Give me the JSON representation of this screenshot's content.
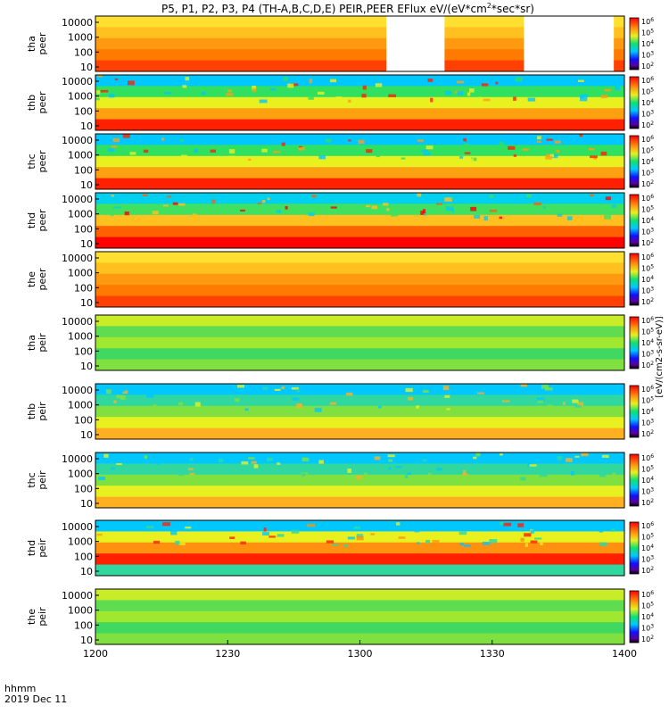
{
  "figure": {
    "title": "P5, P1, P2, P3, P4 (TH-A,B,C,D,E) PEIR,PEER EFlux eV/(eV*cm",
    "title_sup": "2",
    "title_tail": "*sec*sr)",
    "corner_label_1": "hhmm",
    "corner_label_2": "2019 Dec 11"
  },
  "chart_data": {
    "type": "heatmap",
    "x_ticks": [
      "1200",
      "1230",
      "1300",
      "1330",
      "1400"
    ],
    "x_range": [
      "12:00",
      "14:00"
    ],
    "y_scale": "log",
    "colorbar_ticks": [
      "10",
      "10",
      "10",
      "10",
      "10"
    ],
    "colorbar_exps": [
      "2",
      "3",
      "4",
      "5",
      "6"
    ],
    "colorbar_label": "[eV/(cm2-s-sr-eV)]",
    "panels": [
      {
        "label1": "tha",
        "label2": "peer",
        "y_ticks": [
          "10000",
          "1000",
          "100",
          "10"
        ],
        "base": "orange",
        "gaps": [
          [
            0.55,
            0.66
          ],
          [
            0.81,
            0.98
          ]
        ]
      },
      {
        "label1": "thb",
        "label2": "peer",
        "y_ticks": [
          "10000",
          "1000",
          "100",
          "10"
        ],
        "base": "mixed",
        "noise": true
      },
      {
        "label1": "thc",
        "label2": "peer",
        "y_ticks": [
          "10000",
          "1000",
          "100",
          "10"
        ],
        "base": "mixed",
        "noise": true
      },
      {
        "label1": "thd",
        "label2": "peer",
        "y_ticks": [
          "10000",
          "1000",
          "100",
          "10"
        ],
        "base": "red-low",
        "noise": true
      },
      {
        "label1": "the",
        "label2": "peer",
        "y_ticks": [
          "10000",
          "1000",
          "100",
          "10"
        ],
        "base": "orange"
      },
      {
        "label1": "tha",
        "label2": "peir",
        "y_ticks": [
          "10000",
          "1000",
          "100",
          "10"
        ],
        "base": "green"
      },
      {
        "label1": "thb",
        "label2": "peir",
        "y_ticks": [
          "10000",
          "1000",
          "100",
          "10"
        ],
        "base": "mixed-ion",
        "noise": true
      },
      {
        "label1": "thc",
        "label2": "peir",
        "y_ticks": [
          "10000",
          "1000",
          "100",
          "10"
        ],
        "base": "mixed-ion",
        "noise": true
      },
      {
        "label1": "thd",
        "label2": "peir",
        "y_ticks": [
          "10000",
          "1000",
          "100",
          "10"
        ],
        "base": "ion-band",
        "noise": true
      },
      {
        "label1": "the",
        "label2": "peir",
        "y_ticks": [
          "10000",
          "1000",
          "100",
          "10"
        ],
        "base": "green"
      }
    ]
  }
}
